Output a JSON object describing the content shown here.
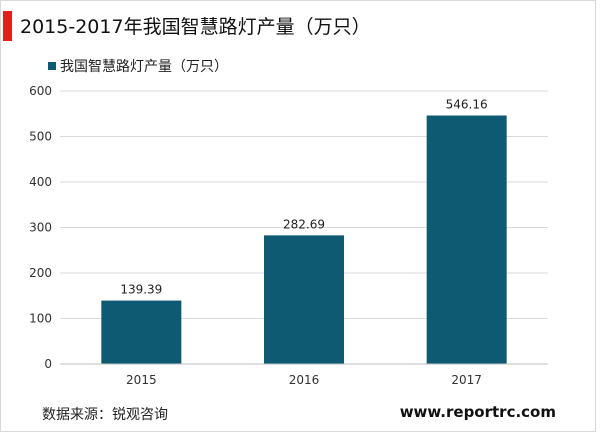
{
  "header": {
    "title": "2015-2017年我国智慧路灯产量（万只）"
  },
  "footer": {
    "source": "数据来源：锐观咨询",
    "website": "www.reportrc.com"
  },
  "colors": {
    "bar": "#0e5a73",
    "accent": "#e0201b",
    "grid": "#d9d9d9"
  },
  "chart_data": {
    "type": "bar",
    "categories": [
      "2015",
      "2016",
      "2017"
    ],
    "series": [
      {
        "name": "我国智慧路灯产量（万只）",
        "values": [
          139.39,
          282.69,
          546.16
        ]
      }
    ],
    "data_labels": [
      "139.39",
      "282.69",
      "546.16"
    ],
    "ylim": [
      0,
      600
    ],
    "yticks": [
      0,
      100,
      200,
      300,
      400,
      500,
      600
    ],
    "grid": true,
    "legend": "top-left"
  }
}
